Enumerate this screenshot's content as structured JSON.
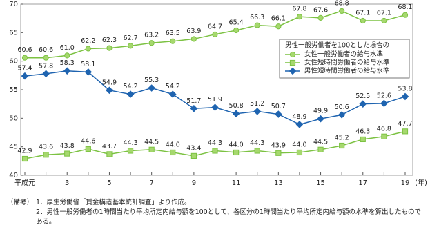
{
  "chart_data": {
    "type": "line",
    "categories": [
      "平成元",
      null,
      "3",
      null,
      "5",
      null,
      "7",
      null,
      "9",
      null,
      "11",
      null,
      "13",
      null,
      "15",
      null,
      "17",
      null,
      "19"
    ],
    "x_label": "(年)",
    "ylim": [
      40,
      70
    ],
    "yticks": [
      40,
      45,
      50,
      55,
      60,
      65,
      70
    ],
    "legend_title": "男性一般労働者を100とした場合の",
    "series": [
      {
        "name": "女性一般労働者の給与水準",
        "color": "#7cc242",
        "marker": "circle",
        "values": [
          60.6,
          60.6,
          61.0,
          62.2,
          62.3,
          62.7,
          63.2,
          63.5,
          63.9,
          64.7,
          65.4,
          66.3,
          66.1,
          67.8,
          67.6,
          68.8,
          67.1,
          67.1,
          68.1
        ],
        "value_labels": [
          "60.6",
          "60.6",
          "61.0",
          "62.2",
          "62.3",
          "62.7",
          "63.2",
          "63.5",
          "63.9",
          "64.7",
          "65.4",
          "66.3",
          "66.1",
          "67.8",
          "67.6",
          "68.8",
          "67.1",
          "67.1",
          "68.1"
        ]
      },
      {
        "name": "女性短時間労働者の給与水準",
        "color": "#7cc242",
        "marker": "square",
        "values": [
          42.9,
          43.6,
          43.8,
          44.6,
          43.7,
          44.3,
          44.5,
          44.0,
          43.4,
          44.3,
          44.0,
          44.3,
          43.9,
          44.0,
          44.5,
          45.2,
          46.3,
          46.8,
          47.7
        ],
        "value_labels": [
          "42.9",
          "43.6",
          "43.8",
          "44.6",
          "43.7",
          "44.3",
          "44.5",
          "44.0",
          "43.4",
          "44.3",
          "44.0",
          "44.3",
          "43.9",
          "44.0",
          "44.5",
          "45.2",
          "46.3",
          "46.8",
          "47.7"
        ]
      },
      {
        "name": "男性短時間労働者の給与水準",
        "color": "#1f64b0",
        "marker": "diamond",
        "values": [
          57.4,
          57.8,
          58.3,
          58.1,
          54.9,
          54.2,
          55.3,
          54.2,
          51.7,
          51.9,
          50.8,
          51.2,
          50.7,
          48.9,
          49.9,
          50.6,
          52.5,
          52.6,
          53.8
        ],
        "value_labels": [
          "57.4",
          "57.8",
          "58.3",
          "58.1",
          "54.9",
          "54.2",
          "55.3",
          "54.2",
          "51.7",
          "51.9",
          "50.8",
          "51.2",
          "50.7",
          "48.9",
          "49.9",
          "50.6",
          "52.5",
          "52.6",
          "53.8"
        ]
      }
    ]
  },
  "notes": {
    "label": "（備考）",
    "items": [
      "1．厚生労働省「賃金構造基本統計調査」より作成。",
      "2．男性一般労働者の1時間当たり平均所定内給与額を100として、各区分の1時間当たり平均所定内給与額の水準を算出したものである。"
    ]
  }
}
